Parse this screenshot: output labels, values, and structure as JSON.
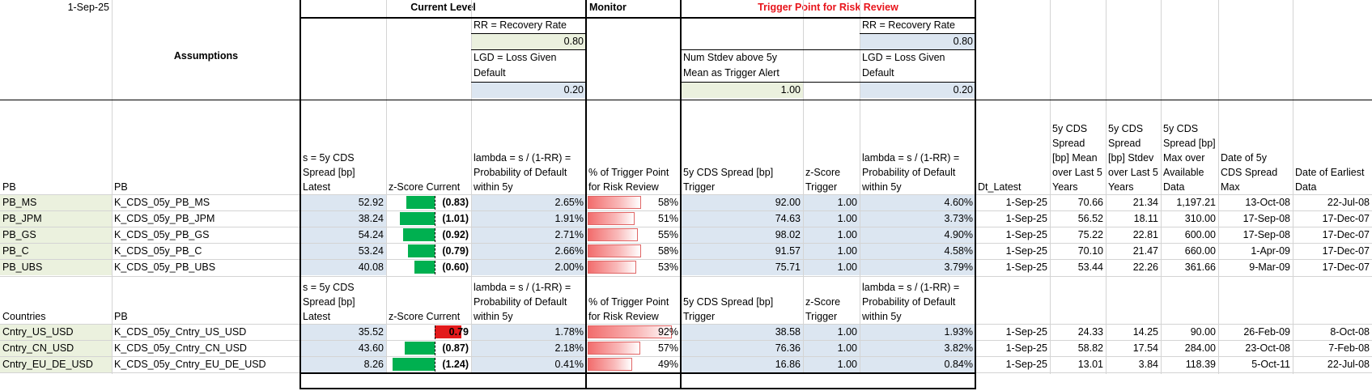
{
  "header": {
    "date": "1-Sep-25",
    "current_level": "Current Level",
    "monitor": "Monitor",
    "trigger_point": "Trigger Point for Risk Review",
    "assumptions": "Assumptions"
  },
  "assumptions_current": {
    "rr_label": "RR = Recovery Rate",
    "rr_value": "0.80",
    "lgd_label": "LGD = Loss Given Default",
    "lgd_value": "0.20"
  },
  "assumptions_trigger": {
    "num_stdev_label": "Num Stdev above 5y Mean as Trigger Alert",
    "num_stdev_value": "1.00",
    "rr_label": "RR = Recovery Rate",
    "rr_value": "0.80",
    "lgd_label": "LGD = Loss Given Default",
    "lgd_value": "0.20"
  },
  "pb_headers": {
    "col_a": "PB",
    "col_b": "PB",
    "spread": "s = 5y CDS Spread [bp] Latest",
    "zscore": "z-Score Current",
    "lambda": "lambda = s / (1-RR) = Probability of Default within 5y",
    "pct_trigger": "% of Trigger Point for Risk Review",
    "spread_trigger": "5y CDS Spread [bp] Trigger",
    "z_trigger": "z-Score Trigger",
    "lambda_trigger": "lambda = s / (1-RR) = Probability of Default within 5y",
    "dt_latest": "Dt_Latest",
    "mean5y": "5y CDS Spread [bp] Mean over Last 5 Years",
    "stdev5y": "5y CDS Spread [bp] Stdev over Last 5 Years",
    "max": "5y CDS Spread [bp] Max over Available Data",
    "date_max": "Date of 5y CDS Spread Max",
    "date_earliest": "Date of Earliest Data"
  },
  "country_headers": {
    "col_a": "Countries",
    "col_b": "PB",
    "spread": "s = 5y CDS Spread [bp] Latest",
    "zscore": "z-Score Current",
    "lambda": "lambda = s / (1-RR) = Probability of Default within 5y",
    "pct_trigger": "% of Trigger Point for Risk Review",
    "spread_trigger": "5y CDS Spread [bp] Trigger",
    "z_trigger": "z-Score Trigger",
    "lambda_trigger": "lambda = s / (1-RR) = Probability of Default within 5y"
  },
  "pb_rows": [
    {
      "name": "PB_MS",
      "ticker": "K_CDS_05y_PB_MS",
      "spread": "52.92",
      "z": "(0.83)",
      "z_value": -0.83,
      "lambda": "2.65%",
      "pct": "58%",
      "pct_value": 0.58,
      "trigger": "92.00",
      "z_trig": "1.00",
      "lambda_trig": "4.60%",
      "dt": "1-Sep-25",
      "mean": "70.66",
      "stdev": "21.34",
      "max": "1,197.21",
      "date_max": "13-Oct-08",
      "date_earliest": "22-Jul-08"
    },
    {
      "name": "PB_JPM",
      "ticker": "K_CDS_05y_PB_JPM",
      "spread": "38.24",
      "z": "(1.01)",
      "z_value": -1.01,
      "lambda": "1.91%",
      "pct": "51%",
      "pct_value": 0.51,
      "trigger": "74.63",
      "z_trig": "1.00",
      "lambda_trig": "3.73%",
      "dt": "1-Sep-25",
      "mean": "56.52",
      "stdev": "18.11",
      "max": "310.00",
      "date_max": "17-Sep-08",
      "date_earliest": "17-Dec-07"
    },
    {
      "name": "PB_GS",
      "ticker": "K_CDS_05y_PB_GS",
      "spread": "54.24",
      "z": "(0.92)",
      "z_value": -0.92,
      "lambda": "2.71%",
      "pct": "55%",
      "pct_value": 0.55,
      "trigger": "98.02",
      "z_trig": "1.00",
      "lambda_trig": "4.90%",
      "dt": "1-Sep-25",
      "mean": "75.22",
      "stdev": "22.81",
      "max": "600.00",
      "date_max": "17-Sep-08",
      "date_earliest": "17-Dec-07"
    },
    {
      "name": "PB_C",
      "ticker": "K_CDS_05y_PB_C",
      "spread": "53.24",
      "z": "(0.79)",
      "z_value": -0.79,
      "lambda": "2.66%",
      "pct": "58%",
      "pct_value": 0.58,
      "trigger": "91.57",
      "z_trig": "1.00",
      "lambda_trig": "4.58%",
      "dt": "1-Sep-25",
      "mean": "70.10",
      "stdev": "21.47",
      "max": "660.00",
      "date_max": "1-Apr-09",
      "date_earliest": "17-Dec-07"
    },
    {
      "name": "PB_UBS",
      "ticker": "K_CDS_05y_PB_UBS",
      "spread": "40.08",
      "z": "(0.60)",
      "z_value": -0.6,
      "lambda": "2.00%",
      "pct": "53%",
      "pct_value": 0.53,
      "trigger": "75.71",
      "z_trig": "1.00",
      "lambda_trig": "3.79%",
      "dt": "1-Sep-25",
      "mean": "53.44",
      "stdev": "22.26",
      "max": "361.66",
      "date_max": "9-Mar-09",
      "date_earliest": "17-Dec-07"
    }
  ],
  "country_rows": [
    {
      "name": "Cntry_US_USD",
      "ticker": "K_CDS_05y_Cntry_US_USD",
      "spread": "35.52",
      "z": "0.79",
      "z_value": 0.79,
      "lambda": "1.78%",
      "pct": "92%",
      "pct_value": 0.92,
      "trigger": "38.58",
      "z_trig": "1.00",
      "lambda_trig": "1.93%",
      "dt": "1-Sep-25",
      "mean": "24.33",
      "stdev": "14.25",
      "max": "90.00",
      "date_max": "26-Feb-09",
      "date_earliest": "8-Oct-08"
    },
    {
      "name": "Cntry_CN_USD",
      "ticker": "K_CDS_05y_Cntry_CN_USD",
      "spread": "43.60",
      "z": "(0.87)",
      "z_value": -0.87,
      "lambda": "2.18%",
      "pct": "57%",
      "pct_value": 0.57,
      "trigger": "76.36",
      "z_trig": "1.00",
      "lambda_trig": "3.82%",
      "dt": "1-Sep-25",
      "mean": "58.82",
      "stdev": "17.54",
      "max": "284.00",
      "date_max": "23-Oct-08",
      "date_earliest": "7-Feb-08"
    },
    {
      "name": "Cntry_EU_DE_USD",
      "ticker": "K_CDS_05y_Cntry_EU_DE_USD",
      "spread": "8.26",
      "z": "(1.24)",
      "z_value": -1.24,
      "lambda": "0.41%",
      "pct": "49%",
      "pct_value": 0.49,
      "trigger": "16.86",
      "z_trig": "1.00",
      "lambda_trig": "0.84%",
      "dt": "1-Sep-25",
      "mean": "13.01",
      "stdev": "3.84",
      "max": "118.39",
      "date_max": "5-Oct-11",
      "date_earliest": "22-Jul-08"
    }
  ],
  "colors": {
    "input_green": "#ebf1de",
    "calc_blue": "#dce6f1",
    "bar_green": "#00b050",
    "bar_red": "#e31a1c",
    "title_red": "#e8141b"
  }
}
